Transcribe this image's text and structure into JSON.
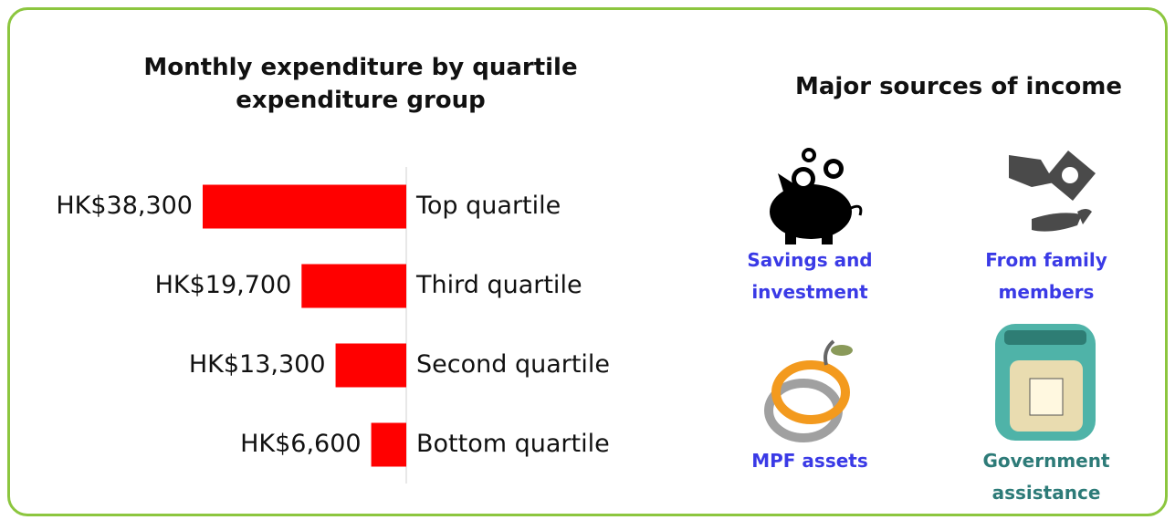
{
  "chart_data": {
    "type": "bar",
    "orientation": "horizontal",
    "title": "Monthly expenditure by quartile expenditure group",
    "categories": [
      "Top quartile",
      "Third quartile",
      "Second quartile",
      "Bottom quartile"
    ],
    "values": [
      38300,
      19700,
      13300,
      6600
    ],
    "value_labels": [
      "HK$38,300",
      "HK$19,700",
      "HK$13,300",
      "HK$6,600"
    ],
    "color": "#ff0000"
  },
  "income_sources": {
    "title": "Major sources of income",
    "items": [
      {
        "label": "Savings and investment"
      },
      {
        "label": "From family members"
      },
      {
        "label": "MPF assets"
      },
      {
        "label": "Government assistance"
      }
    ]
  }
}
